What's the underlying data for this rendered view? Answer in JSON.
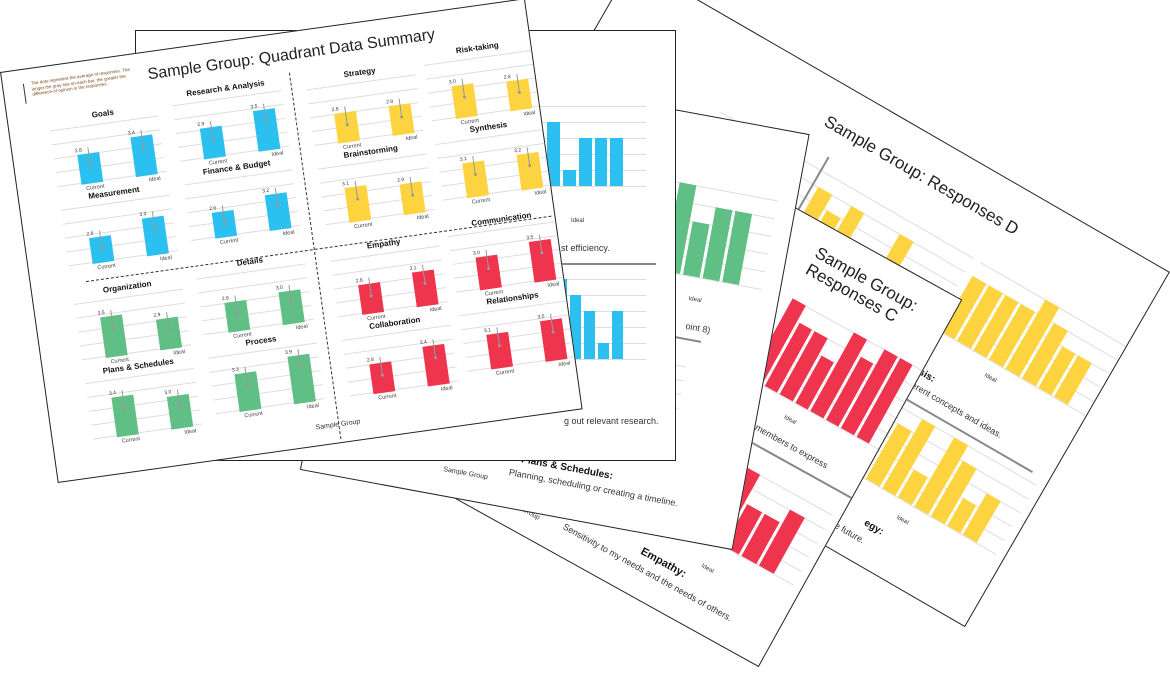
{
  "colors": {
    "blue": "#2bc0ef",
    "yellow": "#fdd43f",
    "green": "#5fbf84",
    "red": "#ef354e"
  },
  "page_d": {
    "title": "Sample Group: Responses D",
    "synthesis_heading": "hesis:",
    "synthesis_desc": "different concepts and ideas.",
    "strategy_heading": "egy:",
    "strategy_desc": "alizing the future.",
    "ideal_label": "Ideal",
    "row1_a": [
      3,
      4,
      2,
      3,
      3,
      1,
      2
    ],
    "row1_b": [
      4,
      3,
      4,
      2,
      1,
      4,
      1,
      2
    ],
    "row1_c": [
      4,
      4,
      4,
      4,
      5,
      4,
      3,
      3
    ],
    "row2": [
      4,
      4,
      5,
      2,
      5,
      4,
      2,
      3
    ]
  },
  "page_c": {
    "title": "Sample Group: Responses C",
    "members_desc": "members to express",
    "ideal_label": "Ideal",
    "empathy_heading": "Empathy:",
    "empathy_desc": "Sensitivity to my needs and the needs of others.",
    "footer": "Sample Group",
    "chart1": [
      5,
      4,
      4,
      3,
      5,
      4,
      5,
      5
    ],
    "chart2": [
      5,
      3,
      3,
      4
    ]
  },
  "page_green": {
    "point_note": "oint 8)",
    "ideal_label": "Ideal",
    "plans_heading": "Plans & Schedules:",
    "plans_desc": "Planning, scheduling or creating a timeline.",
    "footer": "Sample Group",
    "chart1": [
      4,
      5,
      3,
      4,
      4
    ],
    "chart2": [
      3,
      3
    ]
  },
  "page_blue": {
    "ideal_label": "Ideal",
    "efficiency_desc": "st efficiency.",
    "research_desc": "g out relevant research.",
    "chart1": [
      3,
      2,
      4,
      1,
      3,
      3,
      3
    ],
    "chart2": [
      5,
      4,
      3,
      1,
      3
    ]
  },
  "front": {
    "title": "Sample Group: Quadrant Data Summary",
    "legend_note": "The dots represent the average of responses. The longer the gray line on each bar, the greater the difference of opinion in the responses.",
    "footer": "Sample Group",
    "current_label": "Current",
    "ideal_label": "Ideal",
    "cells": [
      {
        "title": "Goals",
        "color": "blue",
        "current": 2.8,
        "ideal": 3.4
      },
      {
        "title": "Research & Analysis",
        "color": "blue",
        "current": 2.9,
        "ideal": 3.5
      },
      {
        "title": "Measurement",
        "color": "blue",
        "current": 2.6,
        "ideal": 3.3
      },
      {
        "title": "Finance & Budget",
        "color": "blue",
        "current": 2.6,
        "ideal": 3.2
      },
      {
        "title": "Strategy",
        "color": "yellow",
        "current": 2.8,
        "ideal": 2.8
      },
      {
        "title": "Risk-taking",
        "color": "yellow",
        "current": 3.0,
        "ideal": 2.8
      },
      {
        "title": "Brainstorming",
        "color": "yellow",
        "current": 3.1,
        "ideal": 2.9
      },
      {
        "title": "Synthesis",
        "color": "yellow",
        "current": 3.1,
        "ideal": 3.2
      },
      {
        "title": "Organization",
        "color": "green",
        "current": 3.5,
        "ideal": 2.9
      },
      {
        "title": "Details",
        "color": "green",
        "current": 2.8,
        "ideal": 3.0
      },
      {
        "title": "Plans & Schedules",
        "color": "green",
        "current": 3.4,
        "ideal": 3.0
      },
      {
        "title": "Process",
        "color": "green",
        "current": 3.3,
        "ideal": 3.9
      },
      {
        "title": "Empathy",
        "color": "red",
        "current": 2.8,
        "ideal": 3.1
      },
      {
        "title": "Communication",
        "color": "red",
        "current": 3.0,
        "ideal": 3.5
      },
      {
        "title": "Collaboration",
        "color": "red",
        "current": 2.8,
        "ideal": 3.4
      },
      {
        "title": "Relationships",
        "color": "red",
        "current": 3.1,
        "ideal": 3.5
      }
    ]
  }
}
